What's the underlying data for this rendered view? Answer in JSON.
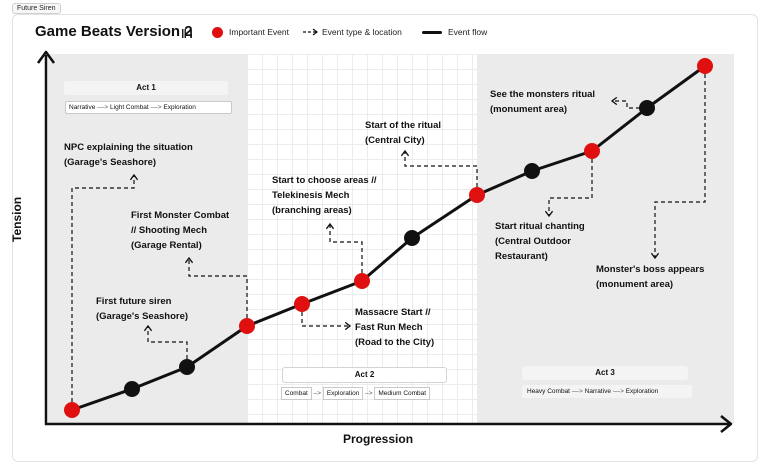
{
  "tag_label": "Future Siren",
  "title": "Game Beats Version 2",
  "title_icon": "bars-icon",
  "legend": {
    "important_event": "Important Event",
    "event_type_location": "Event type & location",
    "event_flow": "Event flow"
  },
  "colors": {
    "important": "#e01010",
    "regular": "#111111",
    "act_shade": "#e9e9e9"
  },
  "axes": {
    "x_label": "Progression",
    "y_label": "Tension"
  },
  "acts": [
    {
      "title": "Act 1",
      "flow": [
        "Narrative",
        "Light Combat",
        "Exploration"
      ]
    },
    {
      "title": "Act 2",
      "flow": [
        "Combat",
        "Exploration",
        "Medium Combat"
      ]
    },
    {
      "title": "Act 3",
      "flow": [
        "Heavy Combat",
        "Narrative",
        "Exploration"
      ]
    }
  ],
  "events": [
    {
      "line1": "NPC explaining the situation",
      "line2": "(Garage's Seashore)",
      "line3": ""
    },
    {
      "line1": "First future siren",
      "line2": "(Garage's Seashore)",
      "line3": ""
    },
    {
      "line1": "First Monster Combat",
      "line2": "// Shooting Mech",
      "line3": "(Garage Rental)"
    },
    {
      "line1": "Massacre Start //",
      "line2": "Fast Run Mech",
      "line3": "(Road to the City)"
    },
    {
      "line1": "Start to choose areas //",
      "line2": "Telekinesis Mech",
      "line3": "(branching areas)"
    },
    {
      "line1": "Start of the ritual",
      "line2": "(Central City)",
      "line3": ""
    },
    {
      "line1": "Start ritual chanting",
      "line2": "(Central Outdoor",
      "line3": "Restaurant)"
    },
    {
      "line1": "See the monsters ritual",
      "line2": "(monument area)",
      "line3": ""
    },
    {
      "line1": "Monster's boss appears",
      "line2": "(monument area)",
      "line3": ""
    }
  ]
}
